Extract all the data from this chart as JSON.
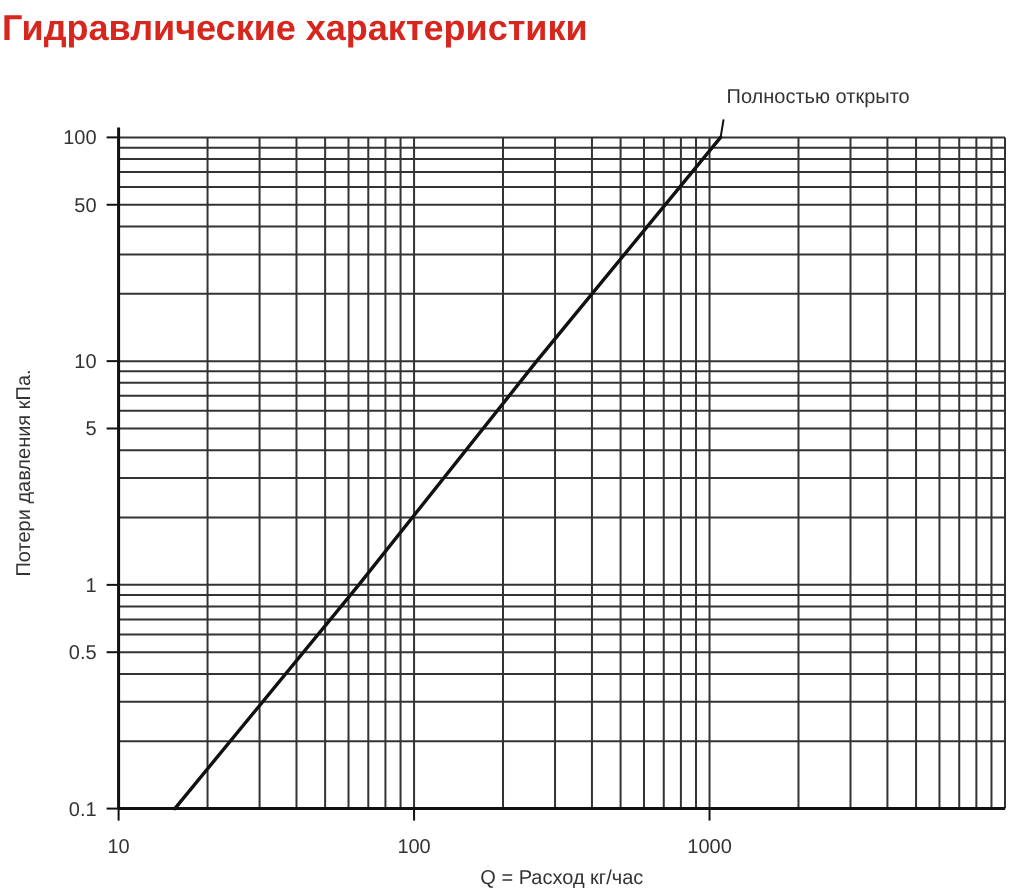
{
  "chart_data": {
    "type": "line",
    "title": "Гидравлические характеристики",
    "xlabel": "Q = Расход кг/час",
    "ylabel": "Потери давления кПа.",
    "log": "xy",
    "grid": true,
    "marker": "none",
    "line_style": "solid",
    "xlim": [
      10,
      10000
    ],
    "ylim": [
      0.1,
      100
    ],
    "xticks": [
      10,
      {
        "value": 20,
        "label": null
      },
      {
        "value": 30,
        "label": null
      },
      {
        "value": 40,
        "label": null
      },
      {
        "value": 50,
        "label": null
      },
      {
        "value": 60,
        "label": null
      },
      {
        "value": 70,
        "label": null
      },
      {
        "value": 80,
        "label": null
      },
      {
        "value": 90,
        "label": null
      },
      100,
      {
        "value": 200,
        "label": null
      },
      {
        "value": 300,
        "label": null
      },
      {
        "value": 400,
        "label": null
      },
      {
        "value": 500,
        "label": null
      },
      {
        "value": 600,
        "label": null
      },
      {
        "value": 700,
        "label": null
      },
      {
        "value": 800,
        "label": null
      },
      {
        "value": 900,
        "label": null
      },
      1000,
      {
        "value": 2000,
        "label": null
      },
      {
        "value": 3000,
        "label": null
      },
      {
        "value": 4000,
        "label": null
      },
      {
        "value": 5000,
        "label": null
      },
      {
        "value": 6000,
        "label": null
      },
      {
        "value": 7000,
        "label": null
      },
      {
        "value": 8000,
        "label": null
      },
      {
        "value": 9000,
        "label": null
      },
      {
        "value": 10000,
        "label": null
      }
    ],
    "yticks": [
      0.1,
      {
        "value": 0.2,
        "label": null
      },
      {
        "value": 0.3,
        "label": null
      },
      {
        "value": 0.4,
        "label": null
      },
      0.5,
      {
        "value": 0.6,
        "label": null
      },
      {
        "value": 0.7,
        "label": null
      },
      {
        "value": 0.8,
        "label": null
      },
      {
        "value": 0.9,
        "label": null
      },
      1,
      {
        "value": 2,
        "label": null
      },
      {
        "value": 3,
        "label": null
      },
      {
        "value": 4,
        "label": null
      },
      5,
      {
        "value": 6,
        "label": null
      },
      {
        "value": 7,
        "label": null
      },
      {
        "value": 8,
        "label": null
      },
      {
        "value": 9,
        "label": null
      },
      10,
      {
        "value": 20,
        "label": null
      },
      {
        "value": 30,
        "label": null
      },
      {
        "value": 40,
        "label": null
      },
      50,
      {
        "value": 60,
        "label": null
      },
      {
        "value": 70,
        "label": null
      },
      {
        "value": 80,
        "label": null
      },
      {
        "value": 90,
        "label": null
      },
      100
    ],
    "x": [
      15.5,
      65,
      260,
      1090
    ],
    "series": [
      {
        "color": "#111111",
        "values": [
          0.1,
          1,
          10,
          100
        ]
      }
    ],
    "annotations": [
      {
        "text": "Полностью открыто",
        "x": 1090,
        "y": 100
      }
    ]
  }
}
